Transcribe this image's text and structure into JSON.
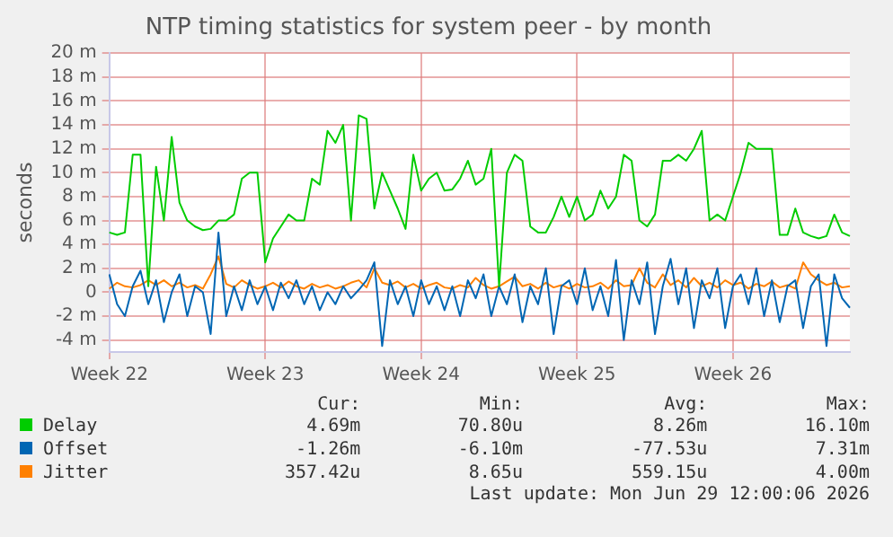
{
  "chart_data": {
    "type": "line",
    "title": "NTP timing statistics for system peer - by month",
    "ylabel": "seconds",
    "categories": [
      "Week 22",
      null,
      null,
      null,
      null,
      null,
      null,
      null,
      null,
      null,
      null,
      null,
      null,
      null,
      null,
      null,
      null,
      null,
      null,
      null,
      "Week 23",
      null,
      null,
      null,
      null,
      null,
      null,
      null,
      null,
      null,
      null,
      null,
      null,
      null,
      null,
      null,
      null,
      null,
      null,
      null,
      "Week 24",
      null,
      null,
      null,
      null,
      null,
      null,
      null,
      null,
      null,
      null,
      null,
      null,
      null,
      null,
      null,
      null,
      null,
      null,
      null,
      "Week 25",
      null,
      null,
      null,
      null,
      null,
      null,
      null,
      null,
      null,
      null,
      null,
      null,
      null,
      null,
      null,
      null,
      null,
      null,
      null,
      "Week 26",
      null,
      null,
      null,
      null,
      null,
      null,
      null,
      null,
      null,
      null,
      null,
      null,
      null,
      null,
      null
    ],
    "series": [
      {
        "name": "Delay",
        "color": "#00cc00",
        "values": [
          5,
          4.8,
          5,
          11.5,
          11.5,
          0.5,
          10.5,
          6,
          13,
          7.5,
          6,
          5.5,
          5.2,
          5.3,
          6,
          6,
          6.5,
          9.5,
          10,
          10,
          2.5,
          4.5,
          5.5,
          6.5,
          6,
          6,
          9.5,
          9,
          13.5,
          12.5,
          14,
          6,
          14.8,
          14.5,
          7,
          10,
          8.5,
          7,
          5.3,
          11.5,
          8.5,
          9.5,
          10,
          8.5,
          8.6,
          9.5,
          11,
          9,
          9.5,
          12,
          0.5,
          10,
          11.5,
          11,
          5.5,
          5,
          5,
          6.3,
          8,
          6.3,
          8,
          6,
          6.5,
          8.5,
          7,
          8,
          11.5,
          11,
          6,
          5.5,
          6.5,
          11,
          11,
          11.5,
          11,
          12,
          13.5,
          6,
          6.5,
          6,
          8,
          10,
          12.5,
          12,
          12,
          12,
          4.8,
          4.8,
          7,
          5,
          4.7,
          4.5,
          4.7,
          6.5,
          5,
          4.7
        ]
      },
      {
        "name": "Offset",
        "color": "#0066b3",
        "values": [
          1.5,
          -1,
          -2,
          0.5,
          1.8,
          -1,
          1,
          -2.5,
          0,
          1.5,
          -2,
          0.5,
          0,
          -3.5,
          5,
          -2,
          0.5,
          -1.5,
          1,
          -1,
          0.5,
          -1.5,
          0.8,
          -0.5,
          1,
          -1,
          0.5,
          -1.5,
          0,
          -1,
          0.5,
          -0.5,
          0.2,
          1,
          2.5,
          -4.5,
          1,
          -1,
          0.5,
          -2,
          1,
          -1,
          0.5,
          -1.5,
          0.5,
          -2,
          1,
          -0.5,
          1.5,
          -2,
          0.5,
          -1,
          1.5,
          -2.5,
          0.5,
          -1,
          2,
          -3.5,
          0.5,
          1,
          -1,
          2,
          -1.5,
          0.5,
          -2,
          2.7,
          -4,
          1,
          -1,
          2.5,
          -3.5,
          0.5,
          2.8,
          -1,
          2,
          -3,
          1,
          -0.5,
          2,
          -3,
          0.5,
          1.5,
          -1,
          2,
          -2,
          1,
          -2.5,
          0.5,
          1,
          -3,
          0.5,
          1.5,
          -4.5,
          1.5,
          -0.5,
          -1.3
        ]
      },
      {
        "name": "Jitter",
        "color": "#ff8000",
        "values": [
          0.3,
          0.8,
          0.5,
          0.4,
          0.6,
          1,
          0.6,
          1,
          0.5,
          0.8,
          0.4,
          0.6,
          0.3,
          1.5,
          3,
          0.7,
          0.4,
          1,
          0.6,
          0.3,
          0.5,
          0.8,
          0.4,
          0.9,
          0.5,
          0.3,
          0.7,
          0.4,
          0.6,
          0.3,
          0.5,
          0.8,
          1,
          0.4,
          2,
          0.8,
          0.6,
          0.9,
          0.4,
          0.7,
          0.3,
          0.6,
          0.8,
          0.4,
          0.3,
          0.6,
          0.4,
          1.2,
          0.6,
          0.3,
          0.5,
          0.9,
          1.3,
          0.5,
          0.7,
          0.3,
          0.8,
          0.4,
          0.6,
          0.3,
          0.7,
          0.4,
          0.5,
          0.8,
          0.3,
          1,
          0.5,
          0.6,
          2,
          0.8,
          0.4,
          1.5,
          0.6,
          1,
          0.4,
          1.2,
          0.5,
          0.8,
          0.4,
          1,
          0.6,
          0.8,
          0.3,
          0.7,
          0.5,
          0.9,
          0.4,
          0.6,
          0.3,
          2.5,
          1.5,
          1,
          0.6,
          0.8,
          0.4,
          0.5
        ]
      }
    ],
    "ylim": [
      -5,
      20
    ],
    "yticks": [
      {
        "value": -4,
        "label": "-4 m"
      },
      {
        "value": -2,
        "label": "-2 m"
      },
      0,
      {
        "value": 2,
        "label": "2 m"
      },
      {
        "value": 4,
        "label": "4 m"
      },
      {
        "value": 6,
        "label": "6 m"
      },
      {
        "value": 8,
        "label": "8 m"
      },
      {
        "value": 10,
        "label": "10 m"
      },
      {
        "value": 12,
        "label": "12 m"
      },
      {
        "value": 14,
        "label": "14 m"
      },
      {
        "value": 16,
        "label": "16 m"
      },
      {
        "value": 18,
        "label": "18 m"
      },
      {
        "value": 20,
        "label": "20 m"
      }
    ],
    "grid": true,
    "legend": "bottom",
    "marker": "none",
    "line_style": "solid",
    "annotations": [
      "Cur:",
      "Min:",
      "Avg:",
      "Max:",
      "4.69m",
      "70.80u",
      "8.26m",
      "16.10m",
      "-1.26m",
      "-6.10m",
      "-77.53u",
      "7.31m",
      "357.42u",
      "8.65u",
      "559.15u",
      "4.00m",
      "Last update: Mon Jun 29 12:00:06 2026"
    ]
  }
}
